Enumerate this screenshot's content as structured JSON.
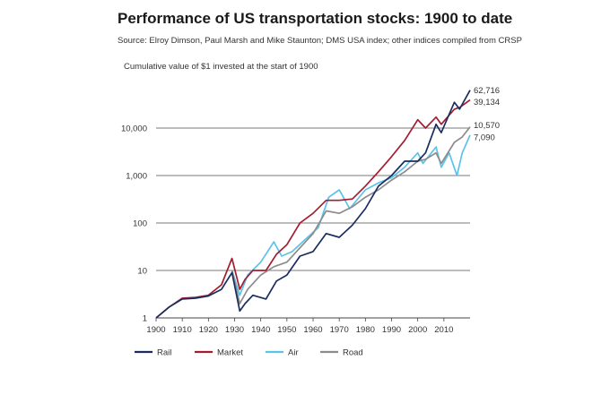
{
  "chart_data": {
    "type": "line",
    "title": "Performance of US transportation stocks: 1900 to date",
    "subtitle": "Source: Elroy Dimson, Paul Marsh and Mike Staunton; DMS USA index; other indices compiled from CRSP",
    "ylabel": "Cumulative value of $1 invested at the start of 1900",
    "xlabel": "",
    "y_scale": "log",
    "ylim": [
      1,
      70000
    ],
    "xlim": [
      1900,
      2020
    ],
    "y_ticks": [
      1,
      10,
      100,
      1000,
      10000
    ],
    "y_tick_labels": [
      "1",
      "10",
      "100",
      "1,000",
      "10,000"
    ],
    "x_ticks": [
      1900,
      1910,
      1920,
      1930,
      1940,
      1950,
      1960,
      1970,
      1980,
      1990,
      2000,
      2010
    ],
    "x_tick_labels": [
      "1900",
      "1910",
      "1920",
      "1930",
      "1940",
      "1950",
      "1960",
      "1970",
      "1980",
      "1990",
      "2000",
      "2010"
    ],
    "grid": "horizontal",
    "legend_position": "bottom",
    "end_labels": [
      {
        "series": "Rail",
        "text": "62,716"
      },
      {
        "series": "Market",
        "text": "39,134"
      },
      {
        "series": "Road",
        "text": "10,570"
      },
      {
        "series": "Air",
        "text": "7,090"
      }
    ],
    "series": [
      {
        "name": "Rail",
        "color": "#1a2e5e",
        "x": [
          1900,
          1905,
          1910,
          1915,
          1920,
          1925,
          1929,
          1932,
          1934,
          1937,
          1942,
          1946,
          1950,
          1955,
          1960,
          1965,
          1970,
          1975,
          1980,
          1985,
          1990,
          1995,
          2000,
          2003,
          2007,
          2009,
          2014,
          2016,
          2020
        ],
        "y": [
          1.0,
          1.7,
          2.5,
          2.6,
          2.9,
          4.0,
          9.0,
          1.4,
          2.0,
          3.0,
          2.5,
          6.0,
          8.0,
          20,
          25,
          60,
          50,
          90,
          200,
          600,
          1000,
          2000,
          2000,
          3000,
          12000,
          8000,
          35000,
          25000,
          62716
        ]
      },
      {
        "name": "Market",
        "color": "#a51c30",
        "x": [
          1900,
          1905,
          1910,
          1915,
          1920,
          1925,
          1929,
          1932,
          1934,
          1937,
          1942,
          1946,
          1950,
          1955,
          1960,
          1965,
          1970,
          1975,
          1980,
          1985,
          1990,
          1995,
          2000,
          2003,
          2007,
          2009,
          2014,
          2016,
          2020
        ],
        "y": [
          1.0,
          1.7,
          2.6,
          2.7,
          3.0,
          5.0,
          18,
          4.0,
          6.5,
          10,
          10,
          22,
          35,
          100,
          160,
          300,
          300,
          320,
          600,
          1200,
          2500,
          5500,
          15000,
          10000,
          17000,
          12000,
          25000,
          27000,
          39134
        ]
      },
      {
        "name": "Air",
        "color": "#5cc3e8",
        "x": [
          1929,
          1932,
          1935,
          1940,
          1945,
          1948,
          1952,
          1957,
          1962,
          1966,
          1970,
          1974,
          1980,
          1985,
          1990,
          1995,
          2000,
          2002,
          2007,
          2009,
          2012,
          2015,
          2017,
          2020
        ],
        "y": [
          10,
          3.0,
          8.0,
          15,
          40,
          20,
          25,
          45,
          80,
          350,
          500,
          200,
          500,
          700,
          900,
          1500,
          3000,
          1800,
          4000,
          1500,
          3000,
          1000,
          3000,
          7090
        ]
      },
      {
        "name": "Road",
        "color": "#8c8c8c",
        "x": [
          1929,
          1932,
          1935,
          1940,
          1945,
          1950,
          1955,
          1960,
          1965,
          1970,
          1975,
          1980,
          1985,
          1990,
          1995,
          2000,
          2003,
          2007,
          2009,
          2014,
          2017,
          2020
        ],
        "y": [
          10,
          2.0,
          4.0,
          8.0,
          12,
          15,
          30,
          60,
          180,
          160,
          220,
          350,
          500,
          800,
          1200,
          2000,
          2200,
          3000,
          1800,
          5000,
          6500,
          10570
        ]
      }
    ]
  }
}
